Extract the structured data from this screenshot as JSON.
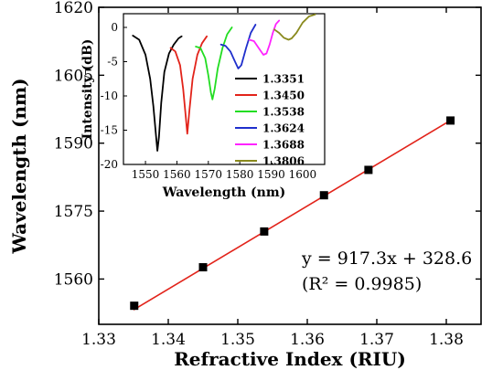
{
  "chart_data": [
    {
      "type": "scatter",
      "xlabel": "Refractive Index (RIU)",
      "ylabel": "Wavelength (nm)",
      "xlim": [
        1.33,
        1.385
      ],
      "ylim": [
        1550,
        1620
      ],
      "x_ticks": [
        "1.33",
        "1.34",
        "1.35",
        "1.36",
        "1.37",
        "1.38"
      ],
      "y_ticks": [
        "1560",
        "1575",
        "1590",
        "1605",
        "1620"
      ],
      "grid": false,
      "series": [
        {
          "marker": "square",
          "color": "#000000",
          "x": [
            1.3351,
            1.345,
            1.3538,
            1.3624,
            1.3688,
            1.3806
          ],
          "y": [
            1554.1,
            1562.6,
            1570.5,
            1578.5,
            1584.1,
            1595.0
          ]
        }
      ],
      "fit": {
        "color": "#e2231a",
        "slope": 917.3,
        "intercept": 328.6,
        "x_range": [
          1.335,
          1.3806
        ]
      },
      "annotation": {
        "equation": "y = 917.3x + 328.6",
        "r_squared": "(R² = 0.9985)"
      }
    },
    {
      "type": "line",
      "xlabel": "Wavelength (nm)",
      "ylabel": "Intensity (dB)",
      "xlim": [
        1543,
        1607
      ],
      "ylim": [
        -20,
        2
      ],
      "x_ticks": [
        "1550",
        "1560",
        "1570",
        "1580",
        "1590",
        "1600"
      ],
      "y_ticks": [
        "0",
        "-5",
        "-10",
        "-15",
        "-20"
      ],
      "legend": "right",
      "series": [
        {
          "name": "1.3351",
          "color": "#000000",
          "x": [
            1546,
            1548,
            1550,
            1551.5,
            1552.5,
            1553.3,
            1553.8,
            1554.3,
            1555,
            1556,
            1557.5,
            1559,
            1560.5,
            1561.5
          ],
          "y": [
            -1.2,
            -1.8,
            -4.0,
            -7.5,
            -11.5,
            -15.5,
            -18.0,
            -16.0,
            -11.0,
            -6.5,
            -3.8,
            -2.5,
            -1.6,
            -1.3
          ]
        },
        {
          "name": "1.3450",
          "color": "#e2231a",
          "x": [
            1558,
            1559.5,
            1561,
            1562,
            1562.8,
            1563.3,
            1564,
            1565,
            1566.5,
            1568,
            1569.5
          ],
          "y": [
            -3.0,
            -3.5,
            -5.5,
            -9.0,
            -13.0,
            -15.5,
            -12.0,
            -7.5,
            -4.0,
            -2.3,
            -1.3
          ]
        },
        {
          "name": "1.3538",
          "color": "#22dd22",
          "x": [
            1566,
            1567.5,
            1569,
            1570,
            1570.8,
            1571.3,
            1572,
            1573,
            1574.5,
            1576,
            1577.5
          ],
          "y": [
            -2.8,
            -3.0,
            -4.5,
            -7.0,
            -9.5,
            -10.5,
            -9.0,
            -6.0,
            -3.0,
            -1.0,
            0.0
          ]
        },
        {
          "name": "1.3624",
          "color": "#1f2fcc",
          "x": [
            1574,
            1575.5,
            1577,
            1578.5,
            1579.5,
            1580.5,
            1582,
            1583.5,
            1585
          ],
          "y": [
            -2.5,
            -2.7,
            -3.5,
            -5.0,
            -6.0,
            -5.5,
            -3.0,
            -0.8,
            0.4
          ]
        },
        {
          "name": "1.3688",
          "color": "#ff22ff",
          "x": [
            1583,
            1584.5,
            1586,
            1587.5,
            1588.5,
            1589.5,
            1590.5,
            1591.5,
            1592.5
          ],
          "y": [
            -1.8,
            -2.0,
            -3.0,
            -4.0,
            -3.8,
            -2.5,
            -0.8,
            0.5,
            1.0
          ]
        },
        {
          "name": "1.3806",
          "color": "#8a8a1e",
          "x": [
            1591,
            1592.5,
            1594,
            1595.5,
            1596.5,
            1598,
            1600,
            1602,
            1604
          ],
          "y": [
            -0.3,
            -0.8,
            -1.5,
            -1.8,
            -1.6,
            -0.8,
            0.7,
            1.6,
            1.9
          ]
        }
      ]
    }
  ]
}
